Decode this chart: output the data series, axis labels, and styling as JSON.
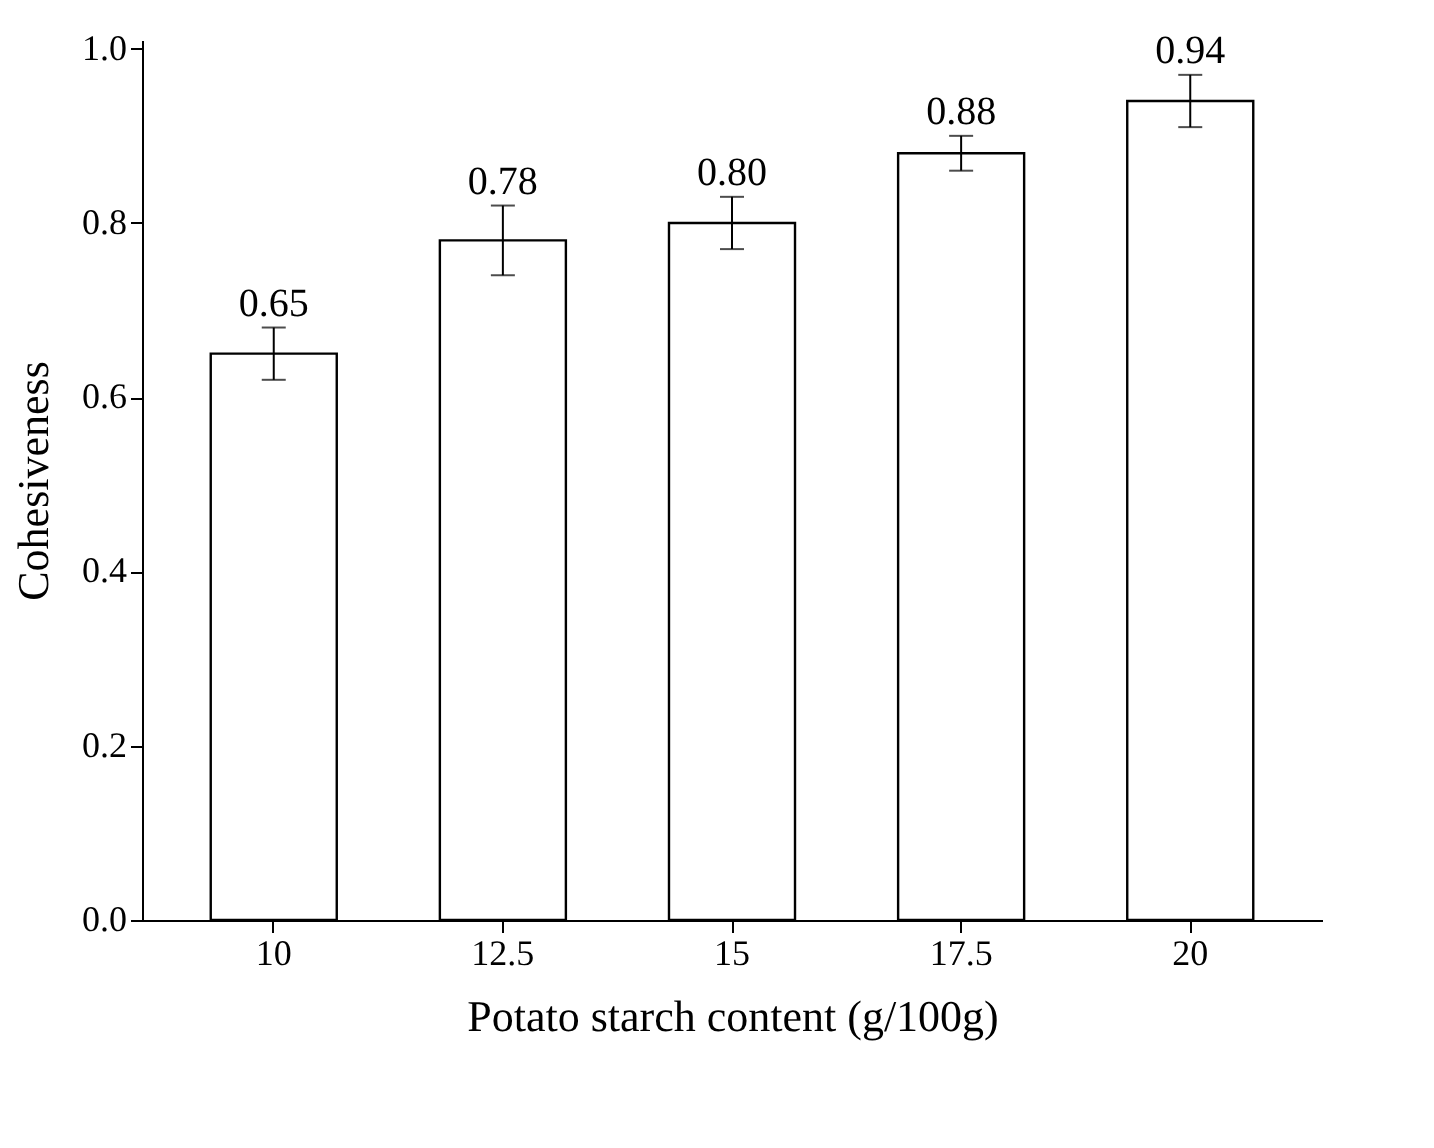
{
  "chart_data": {
    "type": "bar",
    "xlabel": "Potato starch content (g/100g)",
    "ylabel": "Cohesiveness",
    "categories": [
      "10",
      "12.5",
      "15",
      "17.5",
      "20"
    ],
    "values": [
      0.65,
      0.78,
      0.8,
      0.88,
      0.94
    ],
    "errors": [
      0.03,
      0.04,
      0.03,
      0.02,
      0.03
    ],
    "color": "#ffffff",
    "ylim": [
      0,
      1.01
    ],
    "yticks": [
      {
        "value": 0,
        "label": "0.0"
      },
      0.2,
      0.4,
      0.6,
      0.8,
      {
        "value": 1,
        "label": "1.0"
      }
    ],
    "value_labels": [
      "0.65",
      "0.78",
      "0.80",
      "0.88",
      "0.94"
    ],
    "grid": false
  }
}
